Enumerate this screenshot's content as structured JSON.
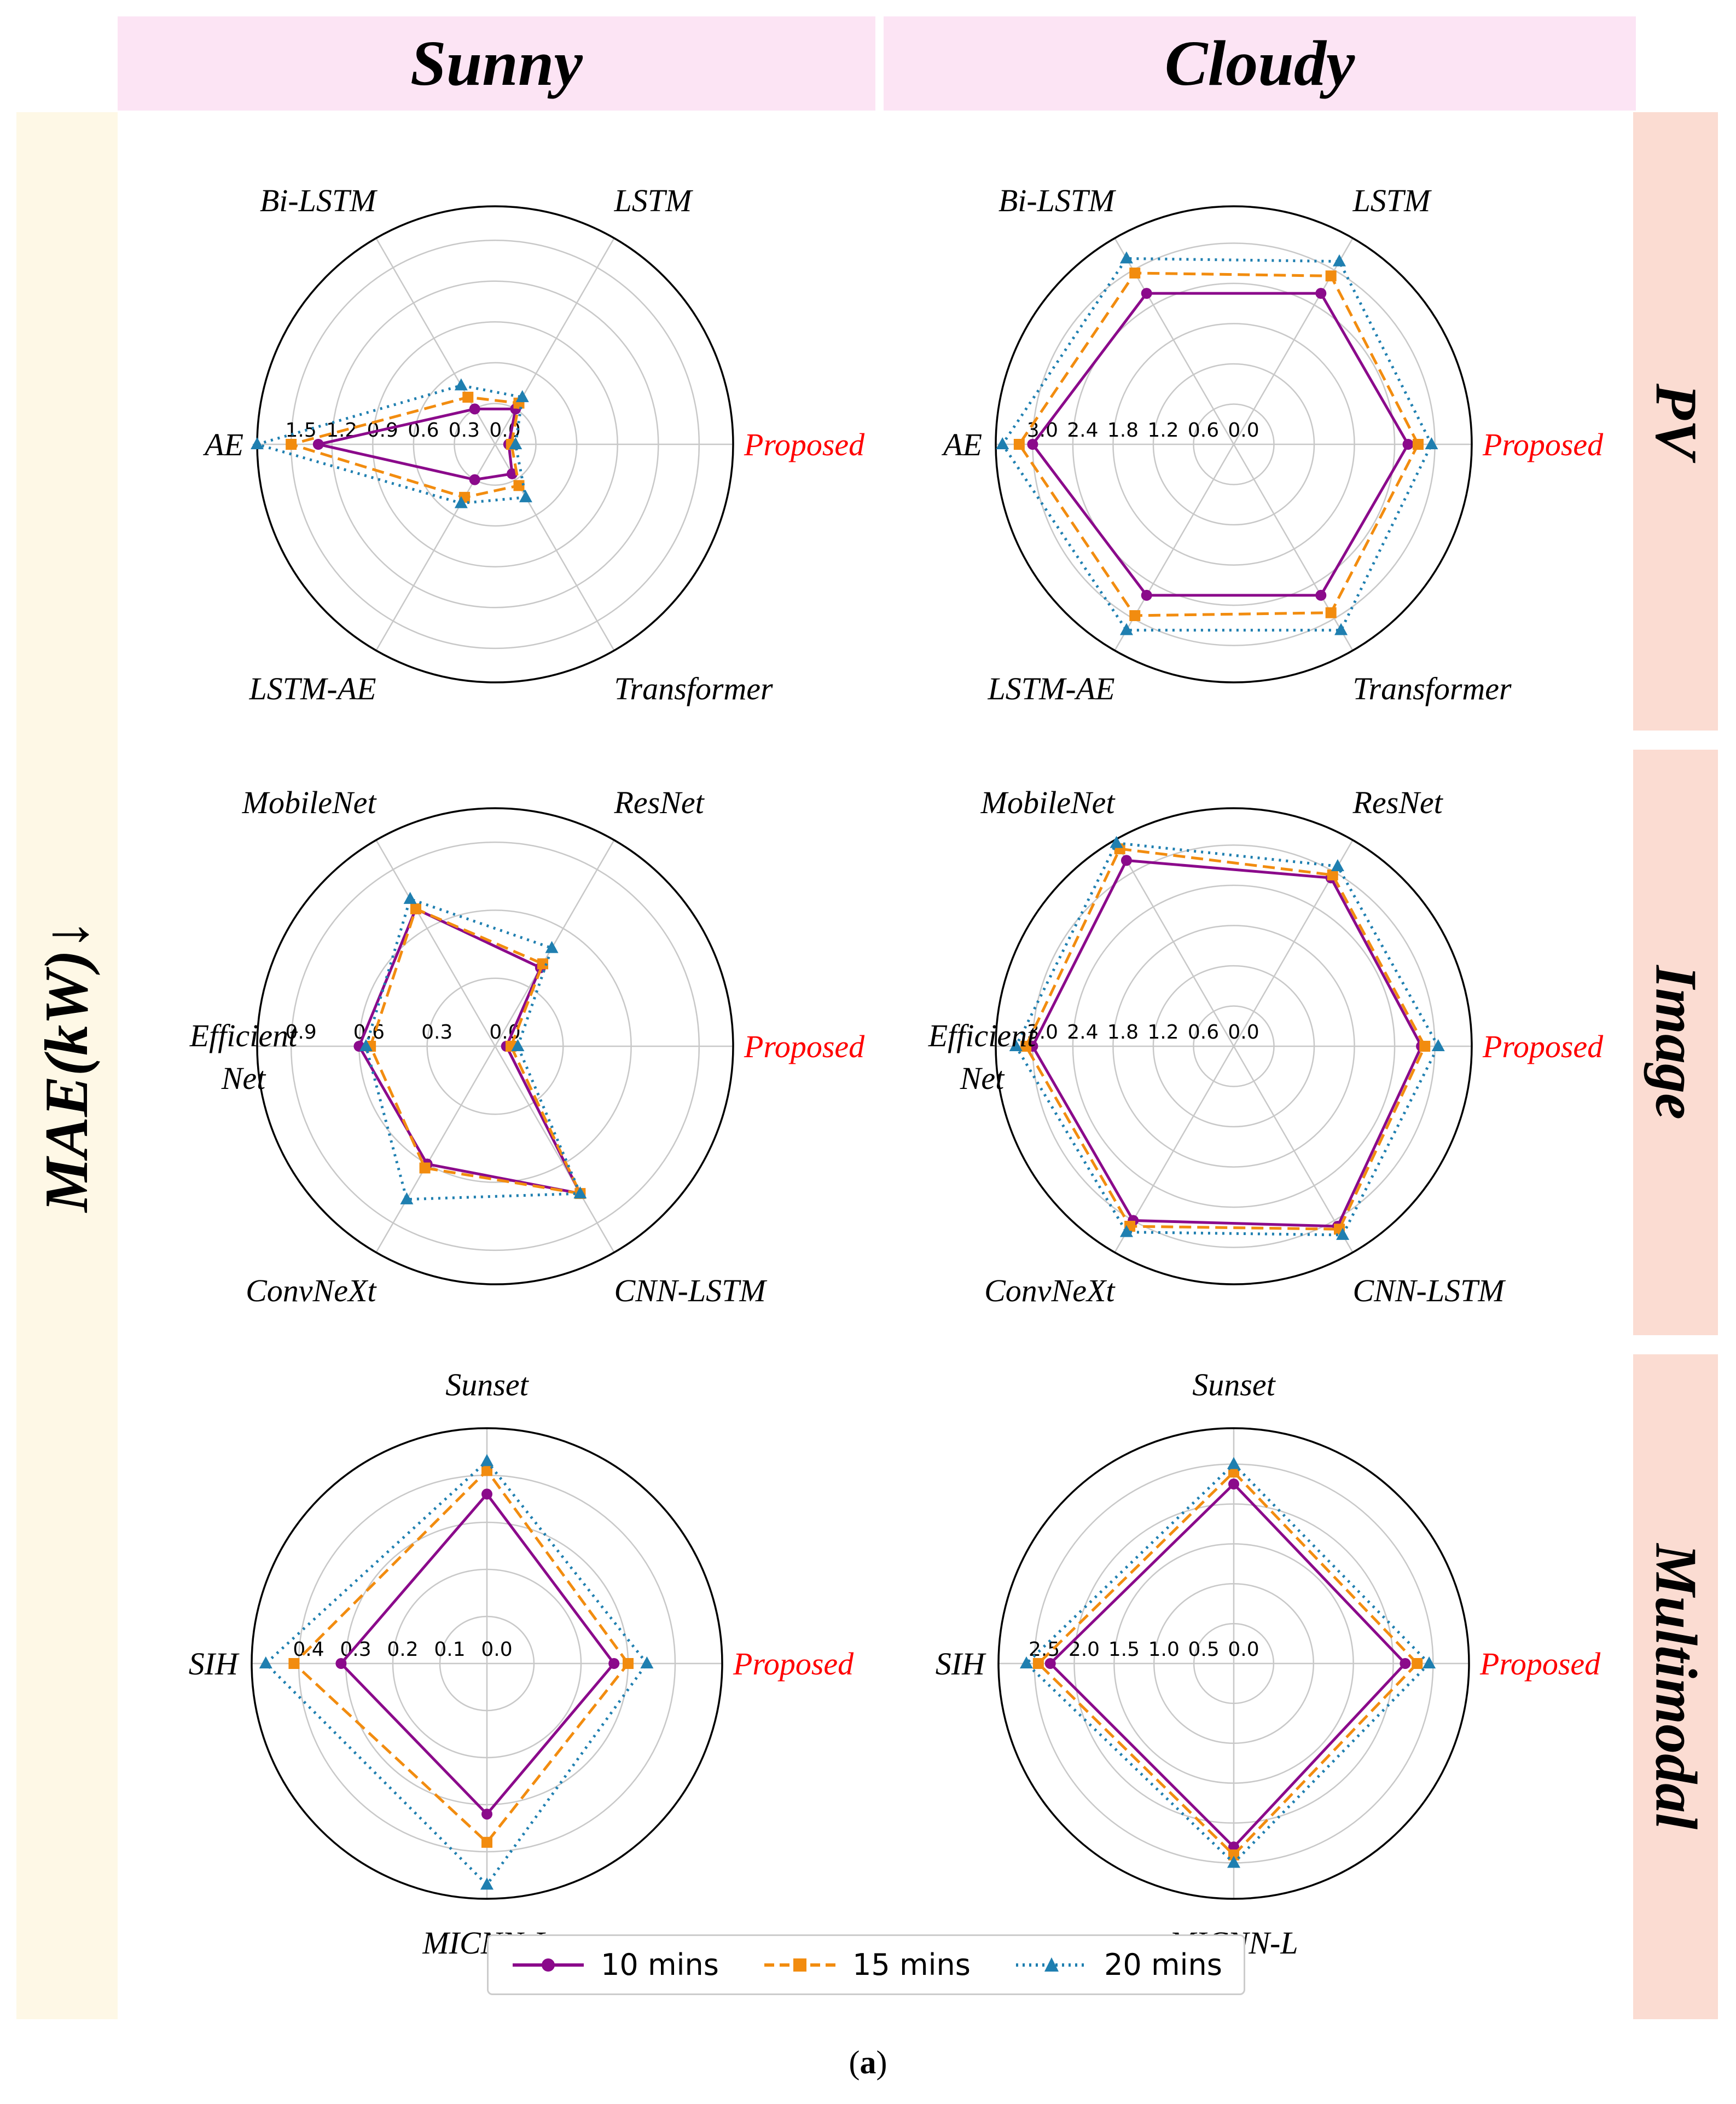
{
  "columns": [
    "Sunny",
    "Cloudy"
  ],
  "rows": [
    "PV",
    "Image",
    "Multimodal"
  ],
  "metric_label": "MAE(kW)↓",
  "legend": [
    {
      "label": "10 mins",
      "color": "#8b0a8b",
      "dash": "solid",
      "marker": "circle"
    },
    {
      "label": "15 mins",
      "color": "#f28c0f",
      "dash": "dashed",
      "marker": "square"
    },
    {
      "label": "20 mins",
      "color": "#1f7fb0",
      "dash": "dotted",
      "marker": "triangle"
    }
  ],
  "caption_prefix": "(",
  "caption_letter": "a",
  "caption_suffix": ")",
  "colors": {
    "proposed_label": "#ff0000",
    "grid": "#c8c8c8",
    "column_header_bg": "#fce4f4",
    "row_header_bg": "#fbdcd2",
    "left_band_bg": "#fef8e6"
  },
  "chart_data": [
    {
      "type": "radar",
      "row": "PV",
      "column": "Sunny",
      "axes": [
        "Proposed",
        "LSTM",
        "Bi-LSTM",
        "AE",
        "LSTM-AE",
        "Transformer"
      ],
      "rmax": 1.75,
      "ticks": [
        0.0,
        0.3,
        0.6,
        0.9,
        1.2,
        1.5
      ],
      "series": [
        {
          "name": "10 mins",
          "values": [
            0.1,
            0.3,
            0.3,
            1.3,
            0.3,
            0.25
          ]
        },
        {
          "name": "15 mins",
          "values": [
            0.12,
            0.35,
            0.4,
            1.5,
            0.45,
            0.35
          ]
        },
        {
          "name": "20 mins",
          "values": [
            0.15,
            0.4,
            0.5,
            1.75,
            0.5,
            0.45
          ]
        }
      ]
    },
    {
      "type": "radar",
      "row": "PV",
      "column": "Cloudy",
      "axes": [
        "Proposed",
        "LSTM",
        "Bi-LSTM",
        "AE",
        "LSTM-AE",
        "Transformer"
      ],
      "rmax": 3.55,
      "ticks": [
        0.0,
        0.6,
        1.2,
        1.8,
        2.4,
        3.0
      ],
      "series": [
        {
          "name": "10 mins",
          "values": [
            2.6,
            2.6,
            2.6,
            3.0,
            2.6,
            2.6
          ]
        },
        {
          "name": "15 mins",
          "values": [
            2.75,
            2.9,
            2.95,
            3.2,
            2.95,
            2.9
          ]
        },
        {
          "name": "20 mins",
          "values": [
            2.95,
            3.15,
            3.2,
            3.45,
            3.2,
            3.2
          ]
        }
      ]
    },
    {
      "type": "radar",
      "row": "Image",
      "column": "Sunny",
      "axes": [
        "Proposed",
        "ResNet",
        "MobileNet",
        "EfficientNet",
        "ConvNeXt",
        "CNN-LSTM"
      ],
      "axis_label_lines": {
        "EfficientNet": [
          "Efficient",
          "Net"
        ]
      },
      "rmax": 1.05,
      "ticks": [
        0.0,
        0.3,
        0.6,
        0.9
      ],
      "series": [
        {
          "name": "10 mins",
          "values": [
            0.05,
            0.4,
            0.7,
            0.6,
            0.6,
            0.75
          ]
        },
        {
          "name": "15 mins",
          "values": [
            0.07,
            0.42,
            0.7,
            0.55,
            0.62,
            0.75
          ]
        },
        {
          "name": "20 mins",
          "values": [
            0.1,
            0.5,
            0.75,
            0.57,
            0.78,
            0.75
          ]
        }
      ]
    },
    {
      "type": "radar",
      "row": "Image",
      "column": "Cloudy",
      "axes": [
        "Proposed",
        "ResNet",
        "MobileNet",
        "EfficientNet",
        "ConvNeXt",
        "CNN-LSTM"
      ],
      "axis_label_lines": {
        "EfficientNet": [
          "Efficient",
          "Net"
        ]
      },
      "rmax": 3.55,
      "ticks": [
        0.0,
        0.6,
        1.2,
        1.8,
        2.4,
        3.0
      ],
      "series": [
        {
          "name": "10 mins",
          "values": [
            2.8,
            2.9,
            3.2,
            3.0,
            3.0,
            3.1
          ]
        },
        {
          "name": "15 mins",
          "values": [
            2.85,
            2.95,
            3.4,
            3.1,
            3.1,
            3.15
          ]
        },
        {
          "name": "20 mins",
          "values": [
            3.05,
            3.1,
            3.5,
            3.25,
            3.2,
            3.25
          ]
        }
      ]
    },
    {
      "type": "radar",
      "row": "Multimodal",
      "column": "Sunny",
      "axes": [
        "Proposed",
        "Sunset",
        "SIH",
        "MICNN-L"
      ],
      "rmax": 0.5,
      "ticks": [
        0.0,
        0.1,
        0.2,
        0.3,
        0.4
      ],
      "series": [
        {
          "name": "10 mins",
          "values": [
            0.27,
            0.36,
            0.31,
            0.32
          ]
        },
        {
          "name": "15 mins",
          "values": [
            0.3,
            0.41,
            0.41,
            0.38
          ]
        },
        {
          "name": "20 mins",
          "values": [
            0.34,
            0.43,
            0.47,
            0.47
          ]
        }
      ]
    },
    {
      "type": "radar",
      "row": "Multimodal",
      "column": "Cloudy",
      "axes": [
        "Proposed",
        "Sunset",
        "SIH",
        "MICNN-L"
      ],
      "rmax": 2.95,
      "ticks": [
        0.0,
        0.5,
        1.0,
        1.5,
        2.0,
        2.5
      ],
      "series": [
        {
          "name": "10 mins",
          "values": [
            2.15,
            2.25,
            2.3,
            2.3
          ]
        },
        {
          "name": "15 mins",
          "values": [
            2.3,
            2.4,
            2.45,
            2.4
          ]
        },
        {
          "name": "20 mins",
          "values": [
            2.45,
            2.5,
            2.6,
            2.5
          ]
        }
      ]
    }
  ]
}
